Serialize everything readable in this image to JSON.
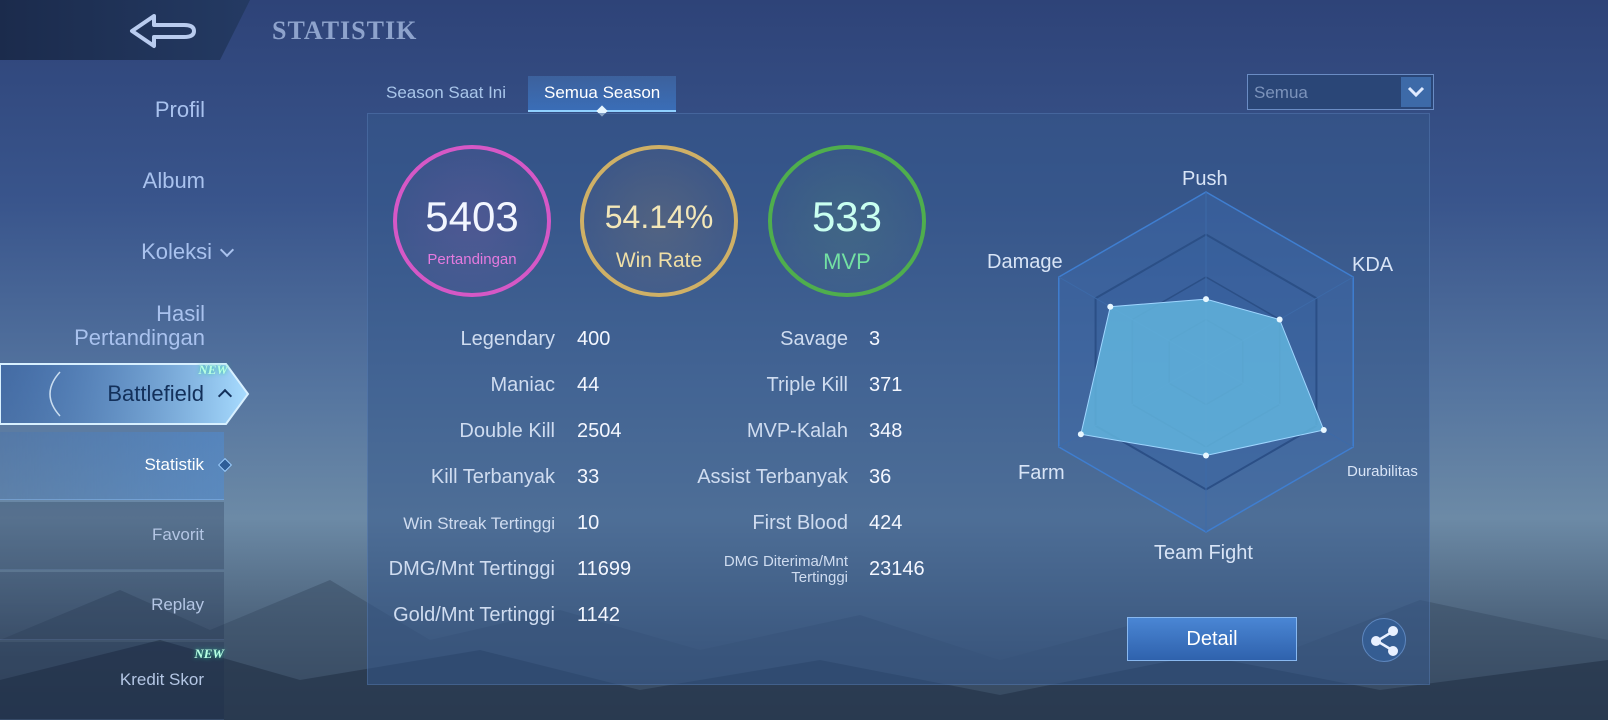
{
  "header": {
    "title": "STATISTIK",
    "back_icon": "back-arrow-icon"
  },
  "sidebar": {
    "items": [
      {
        "label": "Profil"
      },
      {
        "label": "Album"
      },
      {
        "label": "Koleksi"
      },
      {
        "label": "Hasil Pertandingan"
      }
    ],
    "battlefield": {
      "label": "Battlefield",
      "badge": "NEW"
    },
    "subitems": [
      {
        "label": "Statistik",
        "active": true
      },
      {
        "label": "Favorit"
      },
      {
        "label": "Replay"
      },
      {
        "label": "Kredit Skor",
        "badge": "NEW"
      }
    ]
  },
  "tabs": [
    {
      "label": "Season Saat Ini",
      "active": false
    },
    {
      "label": "Semua Season",
      "active": true
    }
  ],
  "filter": {
    "selected": "Semua"
  },
  "summary": {
    "matches": {
      "value": "5403",
      "label": "Pertandingan",
      "color": "#d558c6"
    },
    "win_rate": {
      "value": "54.14%",
      "label": "Win Rate",
      "color": "#cfb066"
    },
    "mvp": {
      "value": "533",
      "label": "MVP",
      "color": "#4fae4d"
    }
  },
  "stats_left": [
    {
      "label": "Legendary",
      "value": "400"
    },
    {
      "label": "Maniac",
      "value": "44"
    },
    {
      "label": "Double Kill",
      "value": "2504"
    },
    {
      "label": "Kill Terbanyak",
      "value": "33"
    },
    {
      "label": "Win Streak Tertinggi",
      "value": "10"
    },
    {
      "label": "DMG/Mnt Tertinggi",
      "value": "11699"
    },
    {
      "label": "Gold/Mnt Tertinggi",
      "value": "1142"
    }
  ],
  "stats_right": [
    {
      "label": "Savage",
      "value": "3"
    },
    {
      "label": "Triple Kill",
      "value": "371"
    },
    {
      "label": "MVP-Kalah",
      "value": "348"
    },
    {
      "label": "Assist Terbanyak",
      "value": "36"
    },
    {
      "label": "First Blood",
      "value": "424"
    },
    {
      "label": "DMG Diterima/Mnt Tertinggi",
      "value": "23146"
    }
  ],
  "radar": {
    "axes": [
      "Push",
      "KDA",
      "Durabilitas",
      "Team Fight",
      "Farm",
      "Damage"
    ],
    "levels": [
      0.37,
      0.5,
      0.8,
      0.55,
      0.85,
      0.65
    ],
    "fill_color": "#62b4dd"
  },
  "actions": {
    "detail_label": "Detail",
    "share_icon": "share-icon"
  }
}
